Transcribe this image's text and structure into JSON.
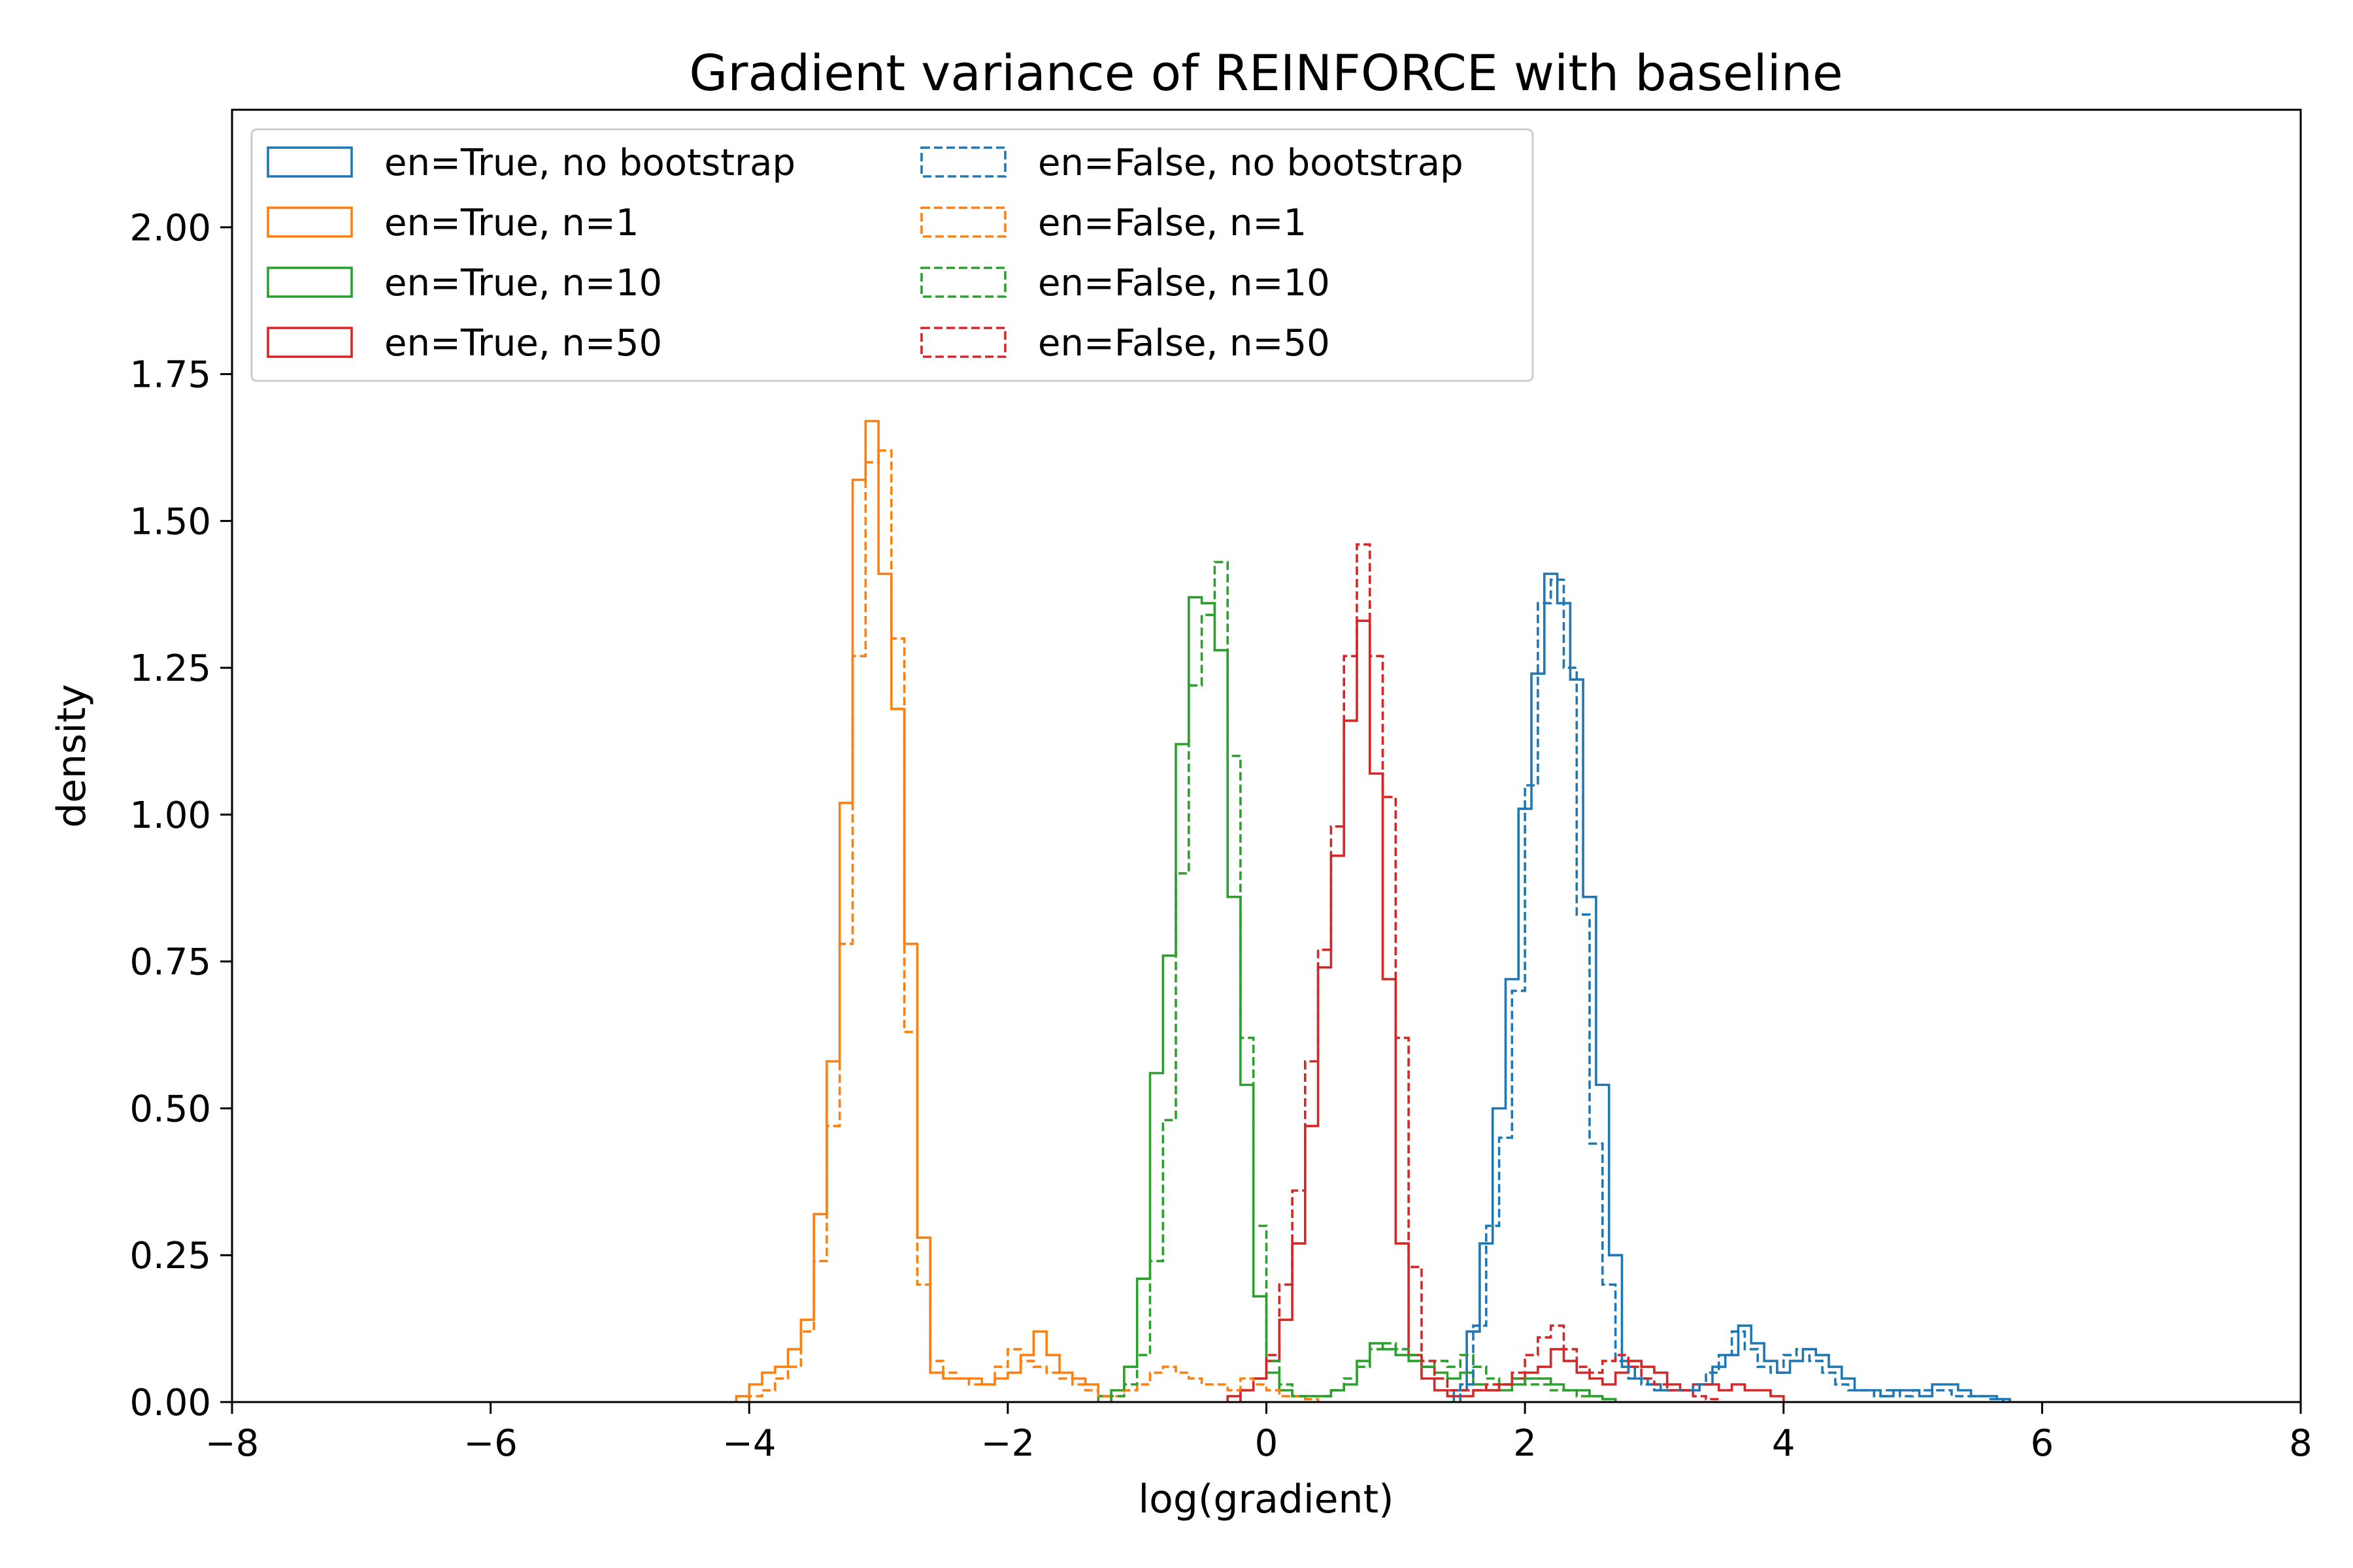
{
  "chart_data": {
    "type": "histogram",
    "title": "Gradient variance of REINFORCE with baseline",
    "xlabel": "log(gradient)",
    "ylabel": "density",
    "xlim": [
      -8,
      8
    ],
    "ylim": [
      0,
      2.2
    ],
    "xticks": [
      -8,
      -6,
      -4,
      -2,
      0,
      2,
      4,
      6,
      8
    ],
    "xtick_labels": [
      "−8",
      "−6",
      "−4",
      "−2",
      "0",
      "2",
      "4",
      "6",
      "8"
    ],
    "yticks": [
      0,
      0.25,
      0.5,
      0.75,
      1.0,
      1.25,
      1.5,
      1.75,
      2.0
    ],
    "ytick_labels": [
      "0.00",
      "0.25",
      "0.50",
      "0.75",
      "1.00",
      "1.25",
      "1.50",
      "1.75",
      "2.00"
    ],
    "grid": false,
    "legend_position": "top-left",
    "legend_columns": 2,
    "series": [
      {
        "name": "en=True, no bootstrap",
        "color": "#1f77b4",
        "dash": "solid",
        "edges": [
          1.45,
          1.55,
          1.65,
          1.75,
          1.85,
          1.95,
          2.05,
          2.15,
          2.25,
          2.35,
          2.45,
          2.55,
          2.65,
          2.75,
          2.85,
          2.95,
          3.05,
          3.15,
          3.25,
          3.35,
          3.45,
          3.55,
          3.65,
          3.75,
          3.85,
          3.95,
          4.05,
          4.15,
          4.25,
          4.35,
          4.45,
          4.55,
          4.65,
          4.75,
          4.85,
          4.95,
          5.05,
          5.15,
          5.25,
          5.35,
          5.45,
          5.55,
          5.65,
          5.75
        ],
        "densities": [
          0.02,
          0.12,
          0.27,
          0.5,
          0.72,
          1.01,
          1.24,
          1.41,
          1.36,
          1.23,
          0.86,
          0.54,
          0.25,
          0.06,
          0.04,
          0.03,
          0.02,
          0.02,
          0.02,
          0.03,
          0.06,
          0.08,
          0.13,
          0.1,
          0.07,
          0.05,
          0.07,
          0.09,
          0.08,
          0.06,
          0.04,
          0.02,
          0.02,
          0.01,
          0.02,
          0.02,
          0.01,
          0.03,
          0.03,
          0.02,
          0.01,
          0.01,
          0.005
        ]
      },
      {
        "name": "en=True, n=1",
        "color": "#ff7f0e",
        "dash": "solid",
        "edges": [
          -4.1,
          -4.0,
          -3.9,
          -3.8,
          -3.7,
          -3.6,
          -3.5,
          -3.4,
          -3.3,
          -3.2,
          -3.1,
          -3.0,
          -2.9,
          -2.8,
          -2.7,
          -2.6,
          -2.5,
          -2.4,
          -2.3,
          -2.2,
          -2.1,
          -2.0,
          -1.9,
          -1.8,
          -1.7,
          -1.6,
          -1.5,
          -1.4,
          -1.3,
          -1.2
        ],
        "densities": [
          0.01,
          0.03,
          0.05,
          0.06,
          0.09,
          0.14,
          0.32,
          0.58,
          1.02,
          1.57,
          1.67,
          1.41,
          1.18,
          0.78,
          0.28,
          0.05,
          0.04,
          0.04,
          0.04,
          0.03,
          0.04,
          0.05,
          0.08,
          0.12,
          0.08,
          0.05,
          0.04,
          0.03,
          0.01
        ]
      },
      {
        "name": "en=True, n=10",
        "color": "#2ca02c",
        "dash": "solid",
        "edges": [
          -1.3,
          -1.2,
          -1.1,
          -1.0,
          -0.9,
          -0.8,
          -0.7,
          -0.6,
          -0.5,
          -0.4,
          -0.3,
          -0.2,
          -0.1,
          0.0,
          0.1,
          0.2,
          0.3,
          0.4,
          0.5,
          0.6,
          0.7,
          0.8,
          0.9,
          1.0,
          1.1,
          1.2,
          1.3,
          1.4,
          1.5,
          1.6,
          1.7,
          1.8,
          1.9,
          2.0,
          2.1,
          2.2,
          2.3,
          2.4,
          2.5,
          2.6,
          2.7
        ],
        "densities": [
          0.01,
          0.02,
          0.06,
          0.21,
          0.56,
          0.76,
          1.12,
          1.37,
          1.36,
          1.28,
          0.86,
          0.54,
          0.18,
          0.05,
          0.02,
          0.01,
          0.01,
          0.01,
          0.02,
          0.03,
          0.07,
          0.1,
          0.09,
          0.08,
          0.07,
          0.06,
          0.05,
          0.04,
          0.05,
          0.03,
          0.02,
          0.02,
          0.03,
          0.04,
          0.04,
          0.03,
          0.02,
          0.02,
          0.01,
          0.005
        ]
      },
      {
        "name": "en=True, n=50",
        "color": "#d62728",
        "dash": "solid",
        "edges": [
          -0.3,
          -0.2,
          -0.1,
          0.0,
          0.1,
          0.2,
          0.3,
          0.4,
          0.5,
          0.6,
          0.7,
          0.8,
          0.9,
          1.0,
          1.1,
          1.2,
          1.3,
          1.4,
          1.5,
          1.6,
          1.7,
          1.8,
          1.9,
          2.0,
          2.1,
          2.2,
          2.3,
          2.4,
          2.5,
          2.6,
          2.7,
          2.8,
          2.9,
          3.0,
          3.1,
          3.2,
          3.3,
          3.4,
          3.5,
          3.6,
          3.7,
          3.8,
          3.9,
          4.0
        ],
        "densities": [
          0.01,
          0.02,
          0.04,
          0.07,
          0.14,
          0.27,
          0.47,
          0.74,
          0.93,
          1.16,
          1.33,
          1.07,
          0.72,
          0.27,
          0.08,
          0.04,
          0.02,
          0.01,
          0.01,
          0.02,
          0.02,
          0.03,
          0.04,
          0.05,
          0.06,
          0.09,
          0.07,
          0.05,
          0.04,
          0.03,
          0.05,
          0.07,
          0.06,
          0.05,
          0.03,
          0.02,
          0.03,
          0.03,
          0.02,
          0.03,
          0.02,
          0.02,
          0.01
        ]
      },
      {
        "name": "en=False, no bootstrap",
        "color": "#1f77b4",
        "dash": "dashed",
        "edges": [
          1.5,
          1.6,
          1.7,
          1.8,
          1.9,
          2.0,
          2.1,
          2.2,
          2.3,
          2.4,
          2.5,
          2.6,
          2.7,
          2.8,
          2.9,
          3.0,
          3.1,
          3.2,
          3.3,
          3.4,
          3.5,
          3.6,
          3.7,
          3.8,
          3.9,
          4.0,
          4.1,
          4.2,
          4.3,
          4.4,
          4.5,
          4.6,
          4.7,
          4.8,
          4.9,
          5.0,
          5.1,
          5.2,
          5.3,
          5.4,
          5.5,
          5.6,
          5.7
        ],
        "densities": [
          0.03,
          0.13,
          0.3,
          0.45,
          0.7,
          1.05,
          1.36,
          1.4,
          1.25,
          0.83,
          0.44,
          0.2,
          0.07,
          0.04,
          0.03,
          0.02,
          0.02,
          0.02,
          0.03,
          0.05,
          0.08,
          0.12,
          0.09,
          0.06,
          0.05,
          0.08,
          0.09,
          0.07,
          0.05,
          0.03,
          0.02,
          0.02,
          0.01,
          0.02,
          0.01,
          0.02,
          0.02,
          0.02,
          0.01,
          0.01,
          0.01,
          0.005
        ]
      },
      {
        "name": "en=False, n=1",
        "color": "#ff7f0e",
        "dash": "dashed",
        "edges": [
          -4.0,
          -3.9,
          -3.8,
          -3.7,
          -3.6,
          -3.5,
          -3.4,
          -3.3,
          -3.2,
          -3.1,
          -3.0,
          -2.9,
          -2.8,
          -2.7,
          -2.6,
          -2.5,
          -2.4,
          -2.3,
          -2.2,
          -2.1,
          -2.0,
          -1.9,
          -1.8,
          -1.7,
          -1.6,
          -1.5,
          -1.4,
          -1.3,
          -1.2,
          -1.1,
          -1.0,
          -0.9,
          -0.8,
          -0.7,
          -0.6,
          -0.5,
          -0.4,
          -0.3,
          -0.2,
          -0.1,
          0.0,
          0.1,
          0.2,
          0.3,
          0.4
        ],
        "densities": [
          0.01,
          0.02,
          0.04,
          0.06,
          0.12,
          0.24,
          0.47,
          0.78,
          1.27,
          1.6,
          1.62,
          1.3,
          0.63,
          0.2,
          0.07,
          0.05,
          0.04,
          0.03,
          0.03,
          0.06,
          0.09,
          0.07,
          0.06,
          0.05,
          0.04,
          0.03,
          0.02,
          0.01,
          0.01,
          0.02,
          0.03,
          0.05,
          0.06,
          0.05,
          0.04,
          0.03,
          0.03,
          0.02,
          0.04,
          0.03,
          0.02,
          0.01,
          0.01,
          0.005
        ]
      },
      {
        "name": "en=False, n=10",
        "color": "#2ca02c",
        "dash": "dashed",
        "edges": [
          -1.2,
          -1.1,
          -1.0,
          -0.9,
          -0.8,
          -0.7,
          -0.6,
          -0.5,
          -0.4,
          -0.3,
          -0.2,
          -0.1,
          0.0,
          0.1,
          0.2,
          0.3,
          0.4,
          0.5,
          0.6,
          0.7,
          0.8,
          0.9,
          1.0,
          1.1,
          1.2,
          1.3,
          1.4,
          1.5,
          1.6,
          1.7,
          1.8,
          1.9,
          2.0,
          2.1,
          2.2,
          2.3,
          2.4,
          2.5,
          2.6,
          2.7
        ],
        "densities": [
          0.01,
          0.03,
          0.08,
          0.24,
          0.48,
          0.9,
          1.22,
          1.34,
          1.43,
          1.1,
          0.62,
          0.3,
          0.07,
          0.03,
          0.01,
          0.01,
          0.01,
          0.02,
          0.04,
          0.06,
          0.09,
          0.1,
          0.09,
          0.08,
          0.06,
          0.07,
          0.06,
          0.08,
          0.06,
          0.04,
          0.03,
          0.04,
          0.03,
          0.03,
          0.02,
          0.02,
          0.01,
          0.01,
          0.005
        ]
      },
      {
        "name": "en=False, n=50",
        "color": "#d62728",
        "dash": "dashed",
        "edges": [
          -0.2,
          -0.1,
          0.0,
          0.1,
          0.2,
          0.3,
          0.4,
          0.5,
          0.6,
          0.7,
          0.8,
          0.9,
          1.0,
          1.1,
          1.2,
          1.3,
          1.4,
          1.5,
          1.6,
          1.7,
          1.8,
          1.9,
          2.0,
          2.1,
          2.2,
          2.3,
          2.4,
          2.5,
          2.6,
          2.7,
          2.8,
          2.9,
          3.0,
          3.1,
          3.2,
          3.3,
          3.4,
          3.5
        ],
        "densities": [
          0.02,
          0.04,
          0.08,
          0.2,
          0.36,
          0.58,
          0.77,
          0.98,
          1.27,
          1.46,
          1.27,
          1.03,
          0.62,
          0.23,
          0.07,
          0.04,
          0.02,
          0.02,
          0.02,
          0.03,
          0.03,
          0.05,
          0.08,
          0.11,
          0.13,
          0.09,
          0.06,
          0.05,
          0.07,
          0.08,
          0.06,
          0.04,
          0.03,
          0.02,
          0.02,
          0.01,
          0.005
        ]
      }
    ]
  }
}
